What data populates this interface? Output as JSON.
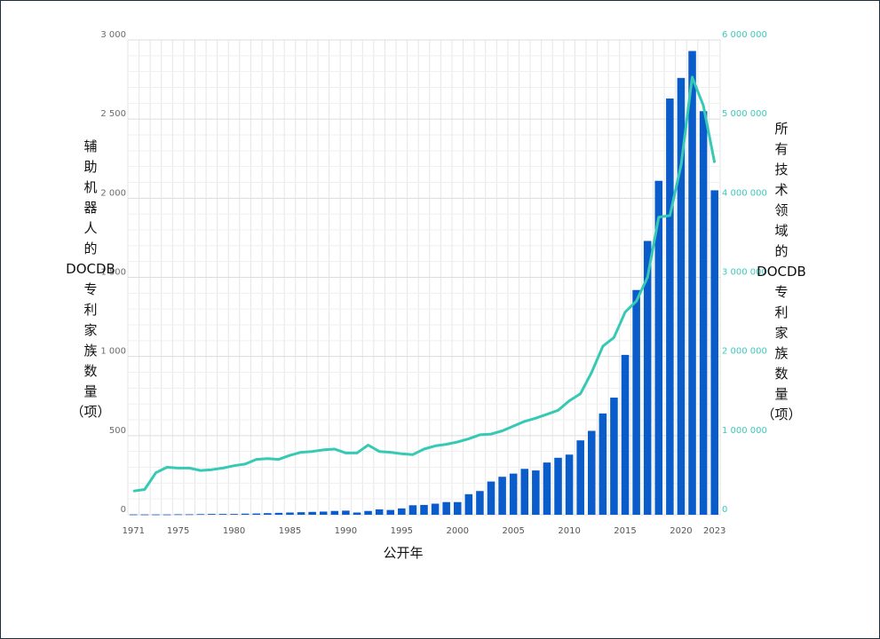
{
  "chart_data": {
    "type": "bar",
    "xlabel": "公开年",
    "ylabel_left": [
      "辅",
      "助",
      "机",
      "器",
      "人",
      "的",
      "DOCDB",
      "专",
      "利",
      "家",
      "族",
      "数",
      "量",
      "（项）"
    ],
    "ylabel_right": [
      "所",
      "有",
      "技",
      "术",
      "领",
      "域",
      "的",
      "DOCDB",
      "专",
      "利",
      "家",
      "族",
      "数",
      "量",
      "（项）"
    ],
    "x_tick_labels": [
      "1971",
      "1975",
      "1980",
      "1985",
      "1990",
      "1995",
      "2000",
      "2005",
      "2010",
      "2015",
      "2020",
      "2023"
    ],
    "y_left_ticks": [
      "0",
      "500",
      "1 000",
      "1 500",
      "2 000",
      "2 500",
      "3 000"
    ],
    "y_right_ticks": [
      "0",
      "1 000 000",
      "2 000 000",
      "3 000 000",
      "4 000 000",
      "5 000 000",
      "6 000 000"
    ],
    "y_left_lim": [
      0,
      3000
    ],
    "y_right_lim": [
      0,
      6000000
    ],
    "x": [
      1971,
      1972,
      1973,
      1974,
      1975,
      1976,
      1977,
      1978,
      1979,
      1980,
      1981,
      1982,
      1983,
      1984,
      1985,
      1986,
      1987,
      1988,
      1989,
      1990,
      1991,
      1992,
      1993,
      1994,
      1995,
      1996,
      1997,
      1998,
      1999,
      2000,
      2001,
      2002,
      2003,
      2004,
      2005,
      2006,
      2007,
      2008,
      2009,
      2010,
      2011,
      2012,
      2013,
      2014,
      2015,
      2016,
      2017,
      2018,
      2019,
      2020,
      2021,
      2022,
      2023
    ],
    "series": [
      {
        "axis": "left",
        "color": "#0b5ccb",
        "kind": "bar",
        "values": [
          2,
          2,
          2,
          2,
          3,
          3,
          4,
          5,
          5,
          5,
          7,
          8,
          10,
          12,
          14,
          16,
          18,
          20,
          24,
          26,
          14,
          24,
          34,
          30,
          40,
          60,
          62,
          70,
          80,
          80,
          130,
          150,
          210,
          240,
          260,
          290,
          280,
          330,
          360,
          380,
          470,
          530,
          640,
          740,
          1010,
          1420,
          1730,
          2110,
          2630,
          2760,
          2930,
          2550,
          2050
        ]
      },
      {
        "axis": "right",
        "color": "#36c9b4",
        "kind": "line",
        "values": [
          300000,
          320000,
          530000,
          600000,
          590000,
          590000,
          560000,
          570000,
          590000,
          620000,
          640000,
          700000,
          710000,
          700000,
          750000,
          790000,
          800000,
          820000,
          830000,
          780000,
          780000,
          880000,
          800000,
          790000,
          770000,
          760000,
          830000,
          870000,
          890000,
          920000,
          960000,
          1010000,
          1020000,
          1060000,
          1120000,
          1180000,
          1220000,
          1270000,
          1320000,
          1440000,
          1530000,
          1800000,
          2130000,
          2240000,
          2560000,
          2700000,
          3000000,
          3760000,
          3780000,
          4420000,
          5530000,
          5170000,
          4450000
        ]
      }
    ]
  }
}
